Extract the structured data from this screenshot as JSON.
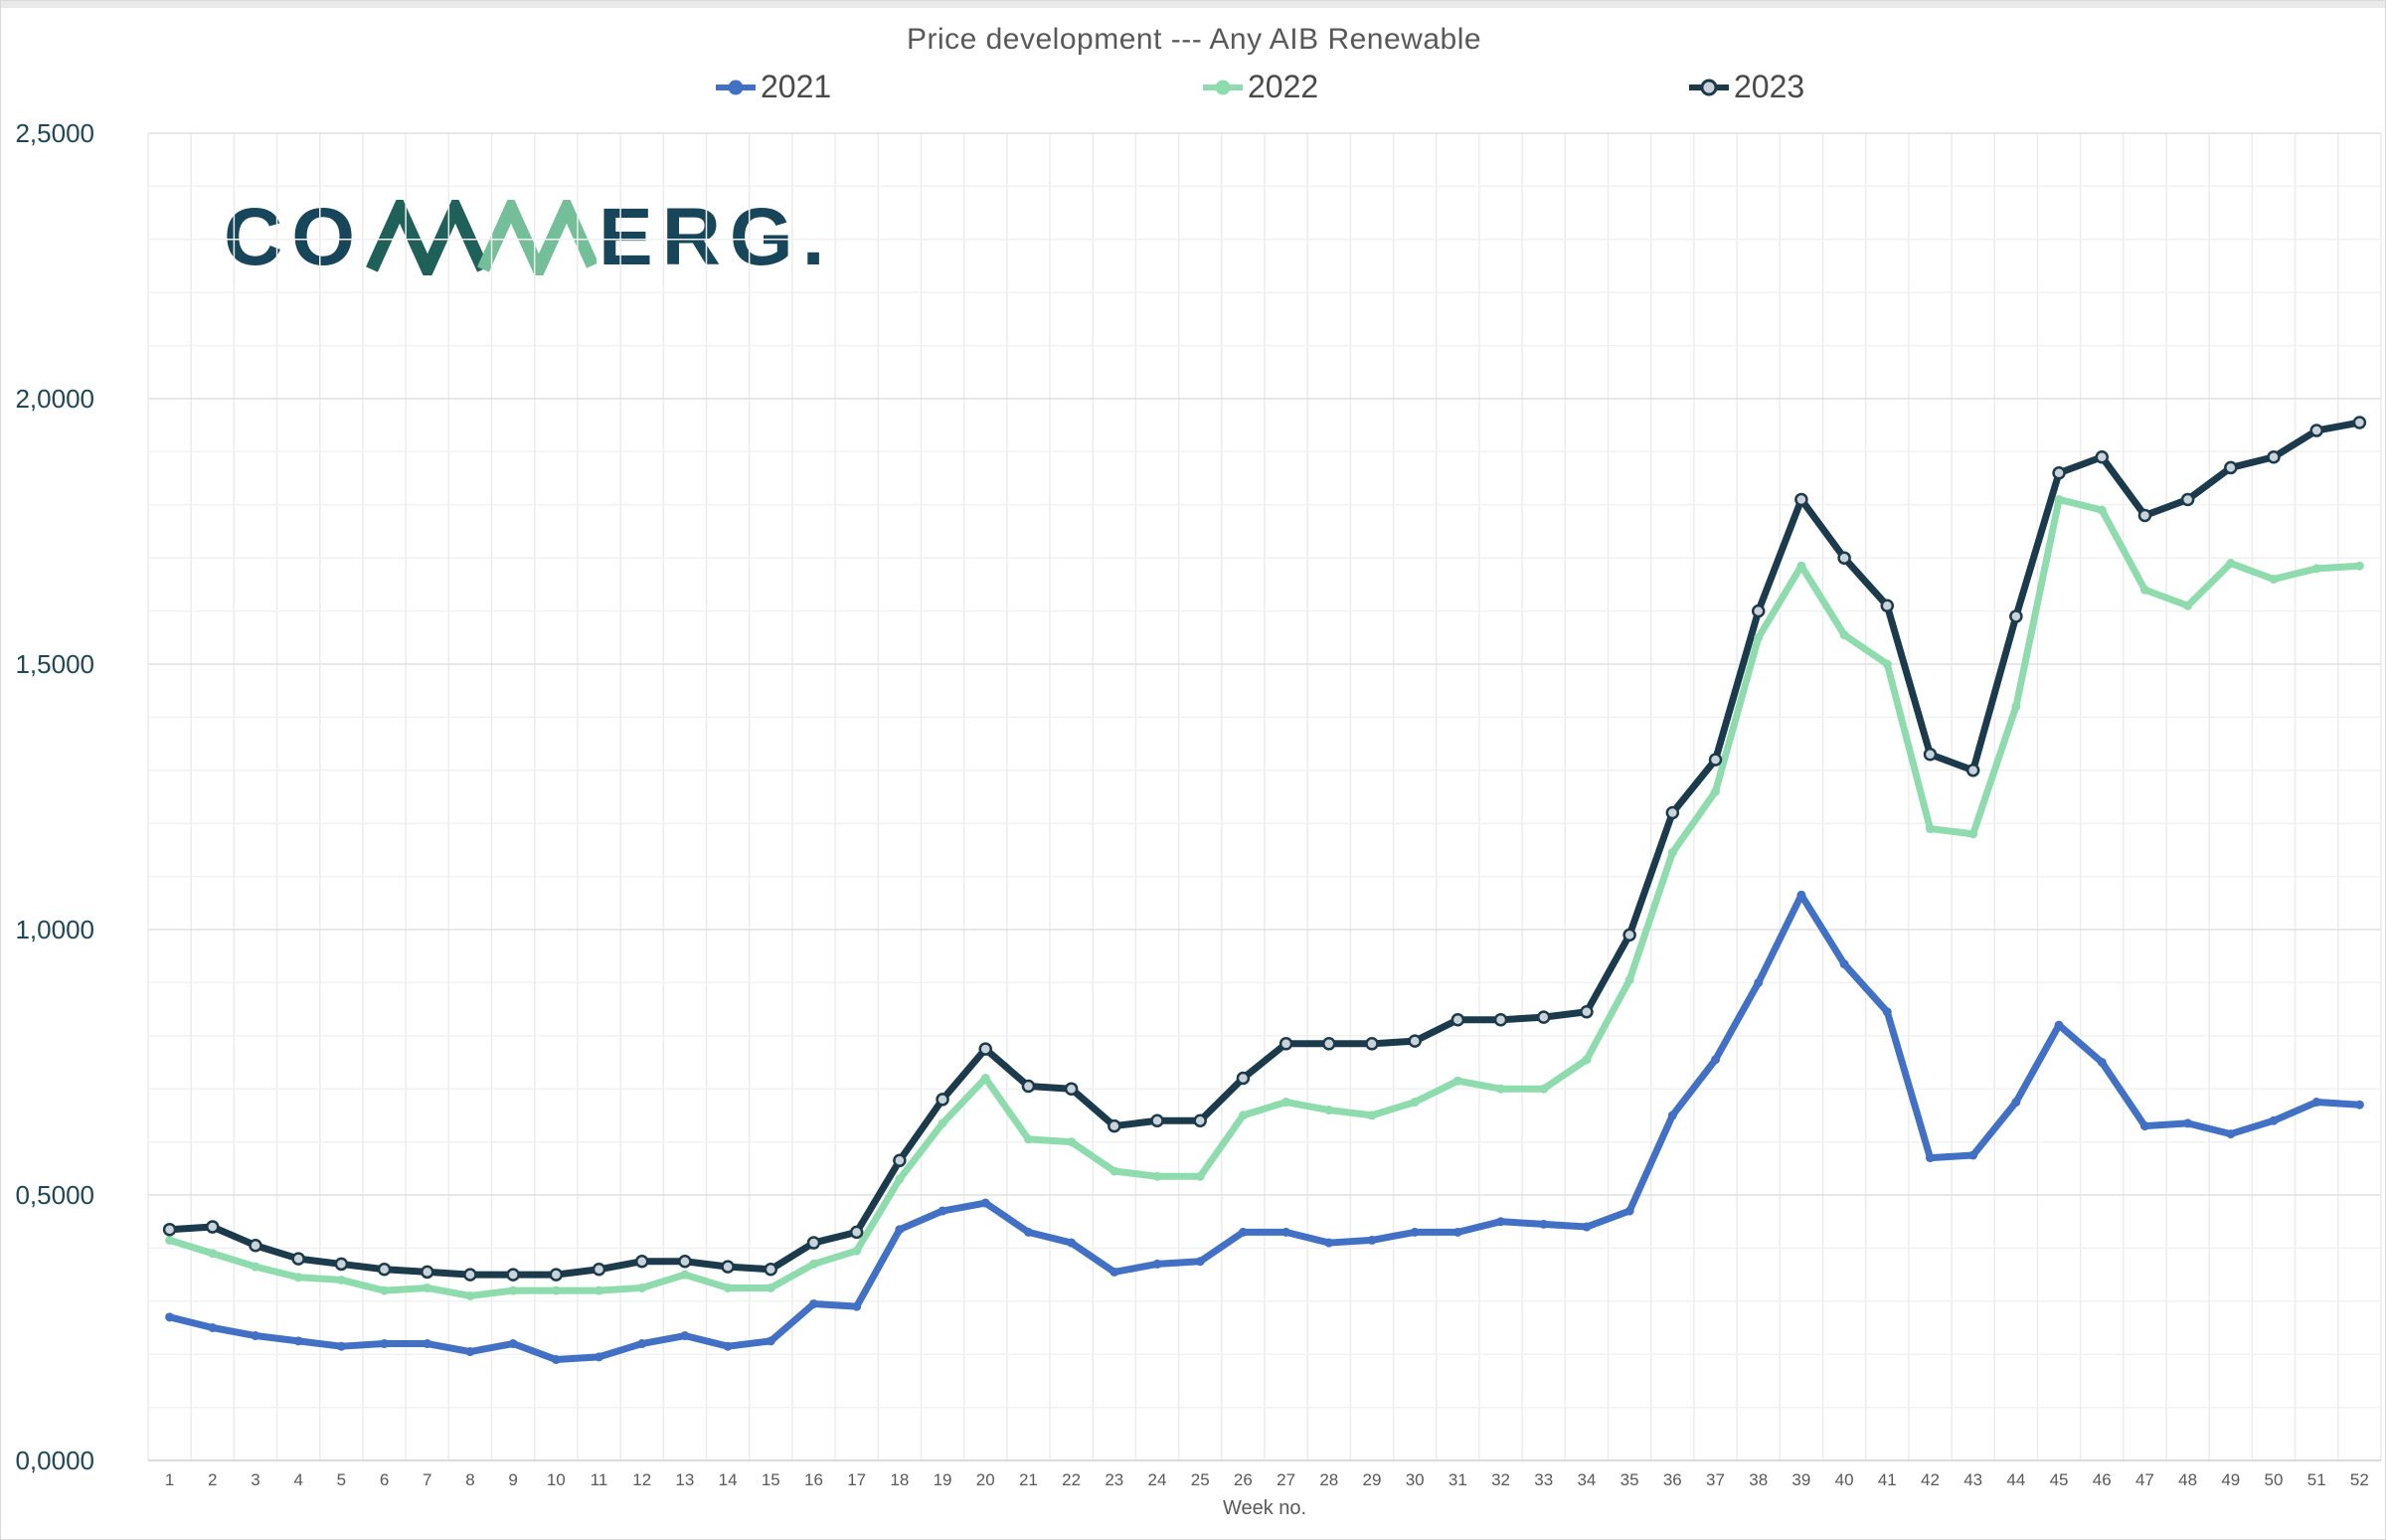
{
  "title": "Price development --- Any AIB Renewable",
  "logo": {
    "left": "CO",
    "right": "ERG.",
    "letter_color": "#17465a",
    "zigzag_dark_color": "#1f6159",
    "zigzag_green_color": "#74be99"
  },
  "legend": {
    "items": [
      {
        "label": "2021",
        "color": "#4170c4"
      },
      {
        "label": "2022",
        "color": "#8edbad"
      },
      {
        "label": "2023",
        "color": "#1b3b4d"
      }
    ]
  },
  "y_axis": {
    "tick_labels": [
      "0,0000",
      "0,5000",
      "1,0000",
      "1,5000",
      "2,0000",
      "2,5000"
    ],
    "tick_values": [
      0,
      0.5,
      1.0,
      1.5,
      2.0,
      2.5
    ],
    "minor_step": 0.1,
    "label_color": "#1f4757"
  },
  "x_axis": {
    "title": "Week no.",
    "label_color": "#595959"
  },
  "chart_data": {
    "type": "line",
    "title": "Price development --- Any AIB Renewable",
    "xlabel": "Week no.",
    "ylabel": "",
    "ylim": [
      0,
      2.5
    ],
    "grid": true,
    "legend_position": "top",
    "x": [
      1,
      2,
      3,
      4,
      5,
      6,
      7,
      8,
      9,
      10,
      11,
      12,
      13,
      14,
      15,
      16,
      17,
      18,
      19,
      20,
      21,
      22,
      23,
      24,
      25,
      26,
      27,
      28,
      29,
      30,
      31,
      32,
      33,
      34,
      35,
      36,
      37,
      38,
      39,
      40,
      41,
      42,
      43,
      44,
      45,
      46,
      47,
      48,
      49,
      50,
      51,
      52
    ],
    "series": [
      {
        "name": "2021",
        "color": "#4170c4",
        "marker": "dot",
        "values": [
          0.27,
          0.25,
          0.235,
          0.225,
          0.215,
          0.22,
          0.22,
          0.205,
          0.22,
          0.19,
          0.195,
          0.22,
          0.235,
          0.215,
          0.225,
          0.295,
          0.29,
          0.435,
          0.47,
          0.485,
          0.43,
          0.41,
          0.355,
          0.37,
          0.375,
          0.43,
          0.43,
          0.41,
          0.415,
          0.43,
          0.43,
          0.45,
          0.445,
          0.44,
          0.47,
          0.65,
          0.755,
          0.9,
          1.065,
          0.935,
          0.845,
          0.57,
          0.575,
          0.675,
          0.82,
          0.75,
          0.63,
          0.635,
          0.615,
          0.64,
          0.675,
          0.67
        ]
      },
      {
        "name": "2022",
        "color": "#8edbad",
        "marker": "dot",
        "values": [
          0.415,
          0.39,
          0.365,
          0.345,
          0.34,
          0.32,
          0.325,
          0.31,
          0.32,
          0.32,
          0.32,
          0.325,
          0.35,
          0.325,
          0.325,
          0.37,
          0.395,
          0.53,
          0.635,
          0.72,
          0.605,
          0.6,
          0.545,
          0.535,
          0.535,
          0.65,
          0.675,
          0.66,
          0.65,
          0.675,
          0.715,
          0.7,
          0.7,
          0.755,
          0.905,
          1.145,
          1.26,
          1.55,
          1.685,
          1.555,
          1.5,
          1.19,
          1.18,
          1.42,
          1.81,
          1.79,
          1.64,
          1.61,
          1.69,
          1.66,
          1.68,
          1.685
        ]
      },
      {
        "name": "2023",
        "color": "#1b3b4d",
        "marker": "ring",
        "marker_fill": "#cbd3d9",
        "values": [
          0.435,
          0.44,
          0.405,
          0.38,
          0.37,
          0.36,
          0.355,
          0.35,
          0.35,
          0.35,
          0.36,
          0.375,
          0.375,
          0.365,
          0.36,
          0.41,
          0.43,
          0.565,
          0.68,
          0.775,
          0.705,
          0.7,
          0.63,
          0.64,
          0.64,
          0.72,
          0.785,
          0.785,
          0.785,
          0.79,
          0.83,
          0.83,
          0.835,
          0.845,
          0.99,
          1.22,
          1.32,
          1.6,
          1.81,
          1.7,
          1.61,
          1.33,
          1.3,
          1.59,
          1.86,
          1.89,
          1.78,
          1.81,
          1.87,
          1.89,
          1.94,
          1.955
        ]
      }
    ]
  }
}
